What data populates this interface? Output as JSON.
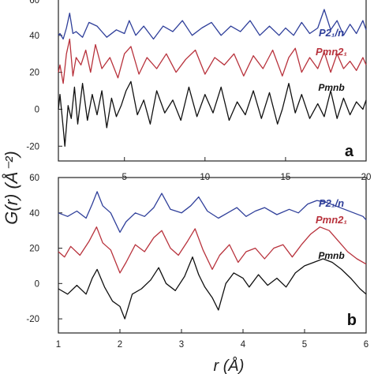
{
  "figure": {
    "ylabel": "G(r) (Å⁻²)",
    "xlabel": "r (Å)"
  },
  "chart_data": [
    {
      "type": "line",
      "panel_label": "a",
      "xlim": [
        0.9,
        20
      ],
      "ylim": [
        -28,
        60
      ],
      "xticks": [
        5,
        10,
        15,
        20
      ],
      "yticks": [
        -20,
        0,
        20,
        40
      ],
      "top_tick_label": "60",
      "grid": false,
      "series": [
        {
          "name": "P2₁/n",
          "color": "#2f3f9a",
          "x": [
            0.9,
            1.0,
            1.2,
            1.4,
            1.6,
            1.8,
            2.0,
            2.4,
            2.8,
            3.3,
            3.9,
            4.5,
            5.0,
            5.3,
            5.7,
            6.2,
            6.8,
            7.4,
            8.0,
            8.6,
            9.2,
            9.8,
            10.4,
            11.0,
            11.6,
            12.2,
            12.8,
            13.4,
            14.0,
            14.6,
            15.0,
            15.5,
            16.0,
            16.5,
            17.0,
            17.4,
            17.8,
            18.2,
            18.6,
            19.0,
            19.4,
            19.8,
            20.0
          ],
          "y": [
            40,
            41,
            38,
            44,
            52,
            41,
            42,
            39,
            47,
            45,
            39,
            43,
            41,
            48,
            40,
            45,
            38,
            45,
            42,
            48,
            40,
            44,
            47,
            40,
            45,
            42,
            48,
            40,
            45,
            40,
            44,
            40,
            47,
            41,
            44,
            54,
            43,
            48,
            40,
            46,
            41,
            48,
            43
          ]
        },
        {
          "name": "Pmn2₁",
          "color": "#b8323c",
          "x": [
            0.9,
            1.0,
            1.2,
            1.4,
            1.6,
            1.8,
            2.0,
            2.3,
            2.6,
            2.9,
            3.2,
            3.6,
            4.1,
            4.6,
            5.0,
            5.4,
            5.9,
            6.4,
            7.0,
            7.6,
            8.2,
            8.8,
            9.4,
            10.0,
            10.6,
            11.2,
            11.8,
            12.4,
            13.0,
            13.6,
            14.2,
            14.8,
            15.2,
            15.6,
            16.0,
            16.5,
            17.0,
            17.4,
            17.8,
            18.2,
            18.6,
            19.0,
            19.4,
            19.8,
            20.0
          ],
          "y": [
            20,
            24,
            14,
            30,
            38,
            18,
            28,
            24,
            32,
            20,
            35,
            22,
            28,
            17,
            30,
            34,
            19,
            28,
            22,
            30,
            20,
            27,
            32,
            19,
            28,
            24,
            30,
            18,
            29,
            22,
            32,
            18,
            28,
            33,
            20,
            28,
            22,
            31,
            20,
            30,
            22,
            26,
            21,
            28,
            24
          ]
        },
        {
          "name": "Pmnb",
          "color": "#111111",
          "x": [
            0.9,
            1.0,
            1.2,
            1.3,
            1.5,
            1.7,
            1.9,
            2.1,
            2.4,
            2.7,
            3.0,
            3.3,
            3.6,
            3.9,
            4.2,
            4.5,
            4.8,
            5.1,
            5.4,
            5.8,
            6.2,
            6.6,
            7.0,
            7.5,
            8.0,
            8.5,
            9.0,
            9.5,
            10.0,
            10.5,
            11.0,
            11.5,
            12.0,
            12.5,
            13.0,
            13.5,
            14.0,
            14.5,
            14.8,
            15.2,
            15.6,
            16.0,
            16.5,
            17.0,
            17.4,
            17.8,
            18.2,
            18.6,
            19.0,
            19.4,
            19.8,
            20.0
          ],
          "y": [
            0,
            8,
            -10,
            -20,
            2,
            -5,
            12,
            -8,
            14,
            -6,
            8,
            -3,
            10,
            -10,
            6,
            -4,
            2,
            10,
            15,
            -3,
            5,
            -8,
            10,
            -2,
            5,
            -6,
            12,
            -4,
            8,
            -2,
            12,
            -6,
            4,
            -3,
            10,
            -5,
            9,
            -8,
            0,
            14,
            -2,
            8,
            -5,
            3,
            -4,
            10,
            -5,
            6,
            -3,
            4,
            0,
            5
          ]
        }
      ]
    },
    {
      "type": "line",
      "panel_label": "b",
      "xlim": [
        1,
        6
      ],
      "ylim": [
        -28,
        60
      ],
      "xticks": [
        1,
        2,
        3,
        4,
        5,
        6
      ],
      "yticks": [
        -20,
        0,
        20,
        40,
        60
      ],
      "grid": false,
      "series": [
        {
          "name": "P2₁/n",
          "color": "#2f3f9a",
          "x": [
            1.0,
            1.15,
            1.3,
            1.45,
            1.55,
            1.63,
            1.72,
            1.85,
            2.0,
            2.1,
            2.25,
            2.4,
            2.55,
            2.68,
            2.82,
            3.0,
            3.15,
            3.28,
            3.42,
            3.6,
            3.75,
            3.9,
            4.05,
            4.2,
            4.35,
            4.55,
            4.75,
            4.9,
            5.05,
            5.2,
            5.35,
            5.5,
            5.65,
            5.8,
            5.95,
            6.0
          ],
          "y": [
            40,
            38,
            41,
            37,
            45,
            52,
            44,
            40,
            29,
            35,
            40,
            38,
            43,
            51,
            42,
            40,
            44,
            49,
            41,
            37,
            40,
            43,
            38,
            41,
            43,
            39,
            42,
            40,
            45,
            47,
            46,
            44,
            42,
            40,
            38,
            36
          ]
        },
        {
          "name": "Pmn2₁",
          "color": "#b8323c",
          "x": [
            1.0,
            1.1,
            1.2,
            1.35,
            1.5,
            1.62,
            1.72,
            1.85,
            2.0,
            2.1,
            2.25,
            2.4,
            2.55,
            2.68,
            2.82,
            2.95,
            3.1,
            3.22,
            3.35,
            3.5,
            3.62,
            3.78,
            3.92,
            4.05,
            4.2,
            4.35,
            4.5,
            4.65,
            4.8,
            4.95,
            5.1,
            5.25,
            5.4,
            5.55,
            5.7,
            5.85,
            6.0
          ],
          "y": [
            18,
            15,
            21,
            16,
            24,
            32,
            23,
            19,
            6,
            12,
            22,
            18,
            26,
            30,
            20,
            16,
            24,
            31,
            19,
            8,
            16,
            22,
            12,
            18,
            20,
            14,
            20,
            22,
            15,
            22,
            28,
            32,
            30,
            24,
            18,
            14,
            11
          ]
        },
        {
          "name": "Pmnb",
          "color": "#111111",
          "x": [
            1.0,
            1.15,
            1.3,
            1.45,
            1.55,
            1.63,
            1.75,
            1.88,
            2.0,
            2.08,
            2.2,
            2.35,
            2.5,
            2.63,
            2.75,
            2.9,
            3.05,
            3.18,
            3.28,
            3.38,
            3.5,
            3.6,
            3.72,
            3.85,
            4.0,
            4.1,
            4.25,
            4.4,
            4.55,
            4.7,
            4.85,
            5.0,
            5.15,
            5.3,
            5.45,
            5.6,
            5.75,
            5.9,
            6.0
          ],
          "y": [
            -3,
            -6,
            -1,
            -6,
            3,
            8,
            -2,
            -10,
            -13,
            -20,
            -6,
            -3,
            2,
            9,
            0,
            -4,
            4,
            15,
            5,
            -2,
            -8,
            -15,
            0,
            6,
            3,
            -2,
            5,
            -1,
            3,
            -2,
            6,
            10,
            12,
            14,
            12,
            8,
            3,
            -3,
            -6
          ]
        }
      ]
    }
  ]
}
